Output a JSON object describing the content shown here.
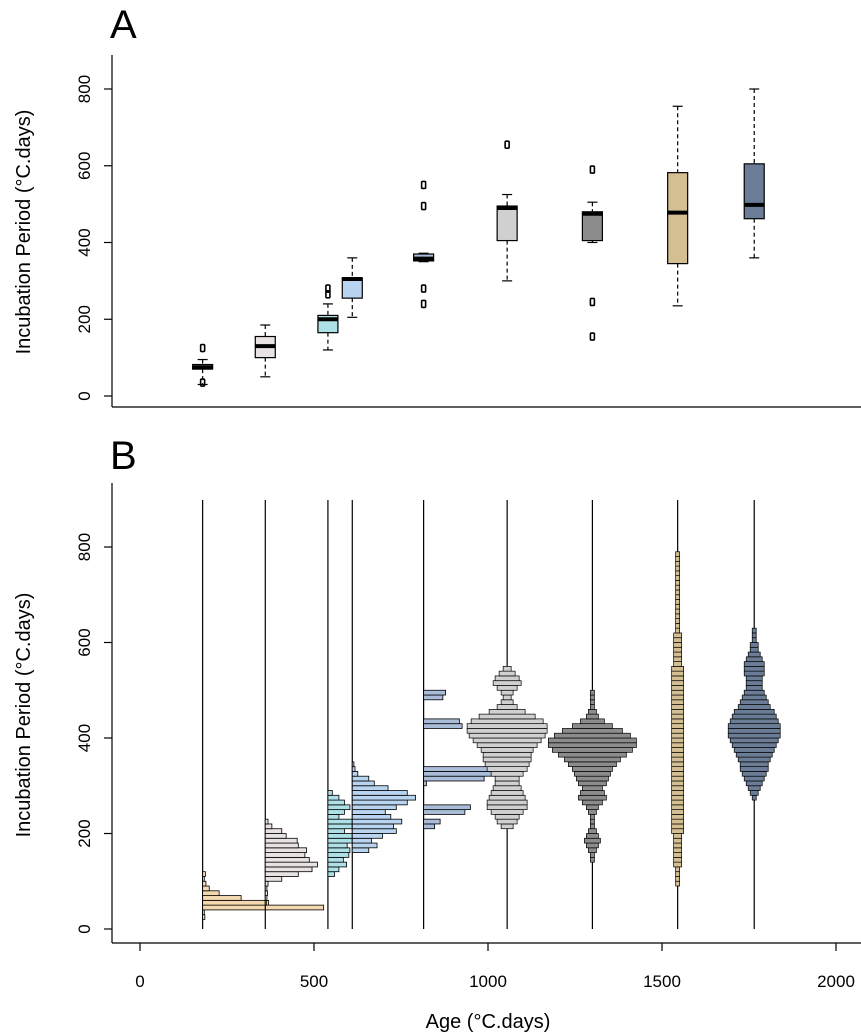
{
  "chart_data": [
    {
      "panel": "A",
      "type": "box",
      "ylabel": "Incubation Period (°C.days)",
      "ylim": [
        -30,
        880
      ],
      "yticks": [
        0,
        200,
        400,
        600,
        800
      ],
      "xlim": [
        -60,
        2070
      ],
      "boxes": [
        {
          "x": 180,
          "lower": 30,
          "q1": 70,
          "median": 75,
          "q3": 82,
          "upper": 95,
          "outliers": [
            35,
            125
          ],
          "color": "#f4d9b0"
        },
        {
          "x": 360,
          "lower": 50,
          "q1": 100,
          "median": 130,
          "q3": 155,
          "upper": 185,
          "outliers": [],
          "color": "#e9e2e2"
        },
        {
          "x": 540,
          "lower": 120,
          "q1": 165,
          "median": 200,
          "q3": 210,
          "upper": 240,
          "outliers": [
            265,
            280
          ],
          "color": "#aee0e8"
        },
        {
          "x": 610,
          "lower": 205,
          "q1": 255,
          "median": 305,
          "q3": 308,
          "upper": 360,
          "outliers": [],
          "color": "#b9d4f0"
        },
        {
          "x": 815,
          "lower": 350,
          "q1": 352,
          "median": 358,
          "q3": 370,
          "upper": 372,
          "outliers": [
            240,
            280,
            495,
            550
          ],
          "color": "#a9bcd8"
        },
        {
          "x": 1055,
          "lower": 300,
          "q1": 405,
          "median": 490,
          "q3": 495,
          "upper": 525,
          "outliers": [
            655
          ],
          "color": "#d0d0d0"
        },
        {
          "x": 1300,
          "lower": 400,
          "q1": 405,
          "median": 475,
          "q3": 480,
          "upper": 505,
          "outliers": [
            155,
            245,
            590
          ],
          "color": "#8c8c8c"
        },
        {
          "x": 1545,
          "lower": 235,
          "q1": 345,
          "median": 478,
          "q3": 582,
          "upper": 755,
          "outliers": [],
          "color": "#d4bf93"
        },
        {
          "x": 1765,
          "lower": 360,
          "q1": 462,
          "median": 498,
          "q3": 605,
          "upper": 800,
          "outliers": [],
          "color": "#6b7d96"
        }
      ]
    },
    {
      "panel": "B",
      "type": "histogram",
      "xlabel": "Age (°C.days)",
      "ylabel": "Incubation Period (°C.days)",
      "xlim": [
        -60,
        2070
      ],
      "ylim": [
        -30,
        930
      ],
      "xticks": [
        0,
        500,
        1000,
        1500,
        2000
      ],
      "yticks": [
        0,
        200,
        400,
        600,
        800
      ],
      "groups": [
        {
          "x": 180,
          "color": "#f4d9b0",
          "style": "bars",
          "bin": 10,
          "ymin": 20,
          "counts": [
            4,
            3,
            220,
            120,
            70,
            30,
            12,
            6,
            3,
            5
          ]
        },
        {
          "x": 360,
          "color": "#e9e2e2",
          "style": "bars",
          "bin": 10,
          "ymin": 50,
          "counts": [
            2,
            3,
            4,
            3,
            5,
            30,
            60,
            85,
            95,
            80,
            72,
            75,
            60,
            58,
            38,
            30,
            12,
            5
          ]
        },
        {
          "x": 540,
          "color": "#aee0e8",
          "style": "bars",
          "bin": 10,
          "ymin": 110,
          "counts": [
            12,
            20,
            34,
            28,
            38,
            40,
            35,
            50,
            55,
            30,
            45,
            55,
            20,
            30,
            40,
            30,
            20,
            8
          ]
        },
        {
          "x": 610,
          "color": "#b9d4f0",
          "style": "bars",
          "bin": 10,
          "ymin": 160,
          "counts": [
            30,
            45,
            35,
            55,
            80,
            75,
            90,
            70,
            60,
            80,
            100,
            115,
            100,
            65,
            40,
            30,
            10,
            5,
            3
          ]
        },
        {
          "x": 815,
          "color": "#a9bcd8",
          "style": "bars",
          "bin": 10,
          "ymin": 210,
          "counts": [
            20,
            30,
            0,
            75,
            85,
            0,
            0,
            0,
            0,
            5,
            110,
            145,
            125,
            0,
            0,
            0,
            0,
            0,
            0,
            0,
            0,
            70,
            65,
            0,
            0,
            0,
            0,
            35,
            40
          ]
        },
        {
          "x": 1055,
          "color": "#d0d0d0",
          "style": "density",
          "bin": 10,
          "ymin": 210,
          "counts": [
            3,
            5,
            6,
            8,
            10,
            10,
            9,
            8,
            7,
            6,
            6,
            8,
            10,
            11,
            12,
            12,
            13,
            15,
            17,
            19,
            20,
            20,
            18,
            14,
            9,
            5,
            3,
            2,
            3,
            5,
            7,
            6,
            4,
            2
          ]
        },
        {
          "x": 1300,
          "color": "#8c8c8c",
          "style": "density",
          "bin": 10,
          "ymin": 140,
          "counts": [
            1,
            1,
            2,
            3,
            4,
            3,
            2,
            1,
            1,
            1,
            2,
            3,
            5,
            7,
            6,
            5,
            7,
            8,
            9,
            10,
            12,
            14,
            17,
            20,
            22,
            22,
            19,
            15,
            10,
            6,
            3,
            2,
            1,
            1,
            1,
            1
          ]
        },
        {
          "x": 1545,
          "color": "#d4bf93",
          "style": "density",
          "bin": 10,
          "ymin": 90,
          "counts": [
            1,
            1,
            1,
            1,
            2,
            2,
            2,
            2,
            2,
            2,
            2,
            3,
            3,
            3,
            3,
            3,
            3,
            3,
            3,
            3,
            3,
            3,
            3,
            3,
            3,
            3,
            3,
            3,
            3,
            3,
            3,
            3,
            3,
            3,
            3,
            3,
            3,
            3,
            3,
            3,
            3,
            3,
            3,
            3,
            3,
            3,
            2,
            2,
            2,
            2,
            2,
            2,
            2,
            1,
            1,
            1,
            1,
            1,
            1,
            1,
            1,
            1,
            1,
            1,
            1,
            1,
            1,
            1,
            1,
            1
          ]
        },
        {
          "x": 1765,
          "color": "#6b7d96",
          "style": "density",
          "bin": 10,
          "ymin": 270,
          "counts": [
            1,
            2,
            3,
            4,
            5,
            6,
            7,
            7,
            8,
            9,
            10,
            11,
            12,
            13,
            13,
            13,
            12,
            11,
            10,
            8,
            7,
            6,
            5,
            4,
            4,
            4,
            5,
            5,
            5,
            4,
            3,
            2,
            2,
            1,
            1,
            1
          ]
        }
      ]
    }
  ],
  "labels": {
    "panel_a": "A",
    "panel_b": "B"
  }
}
